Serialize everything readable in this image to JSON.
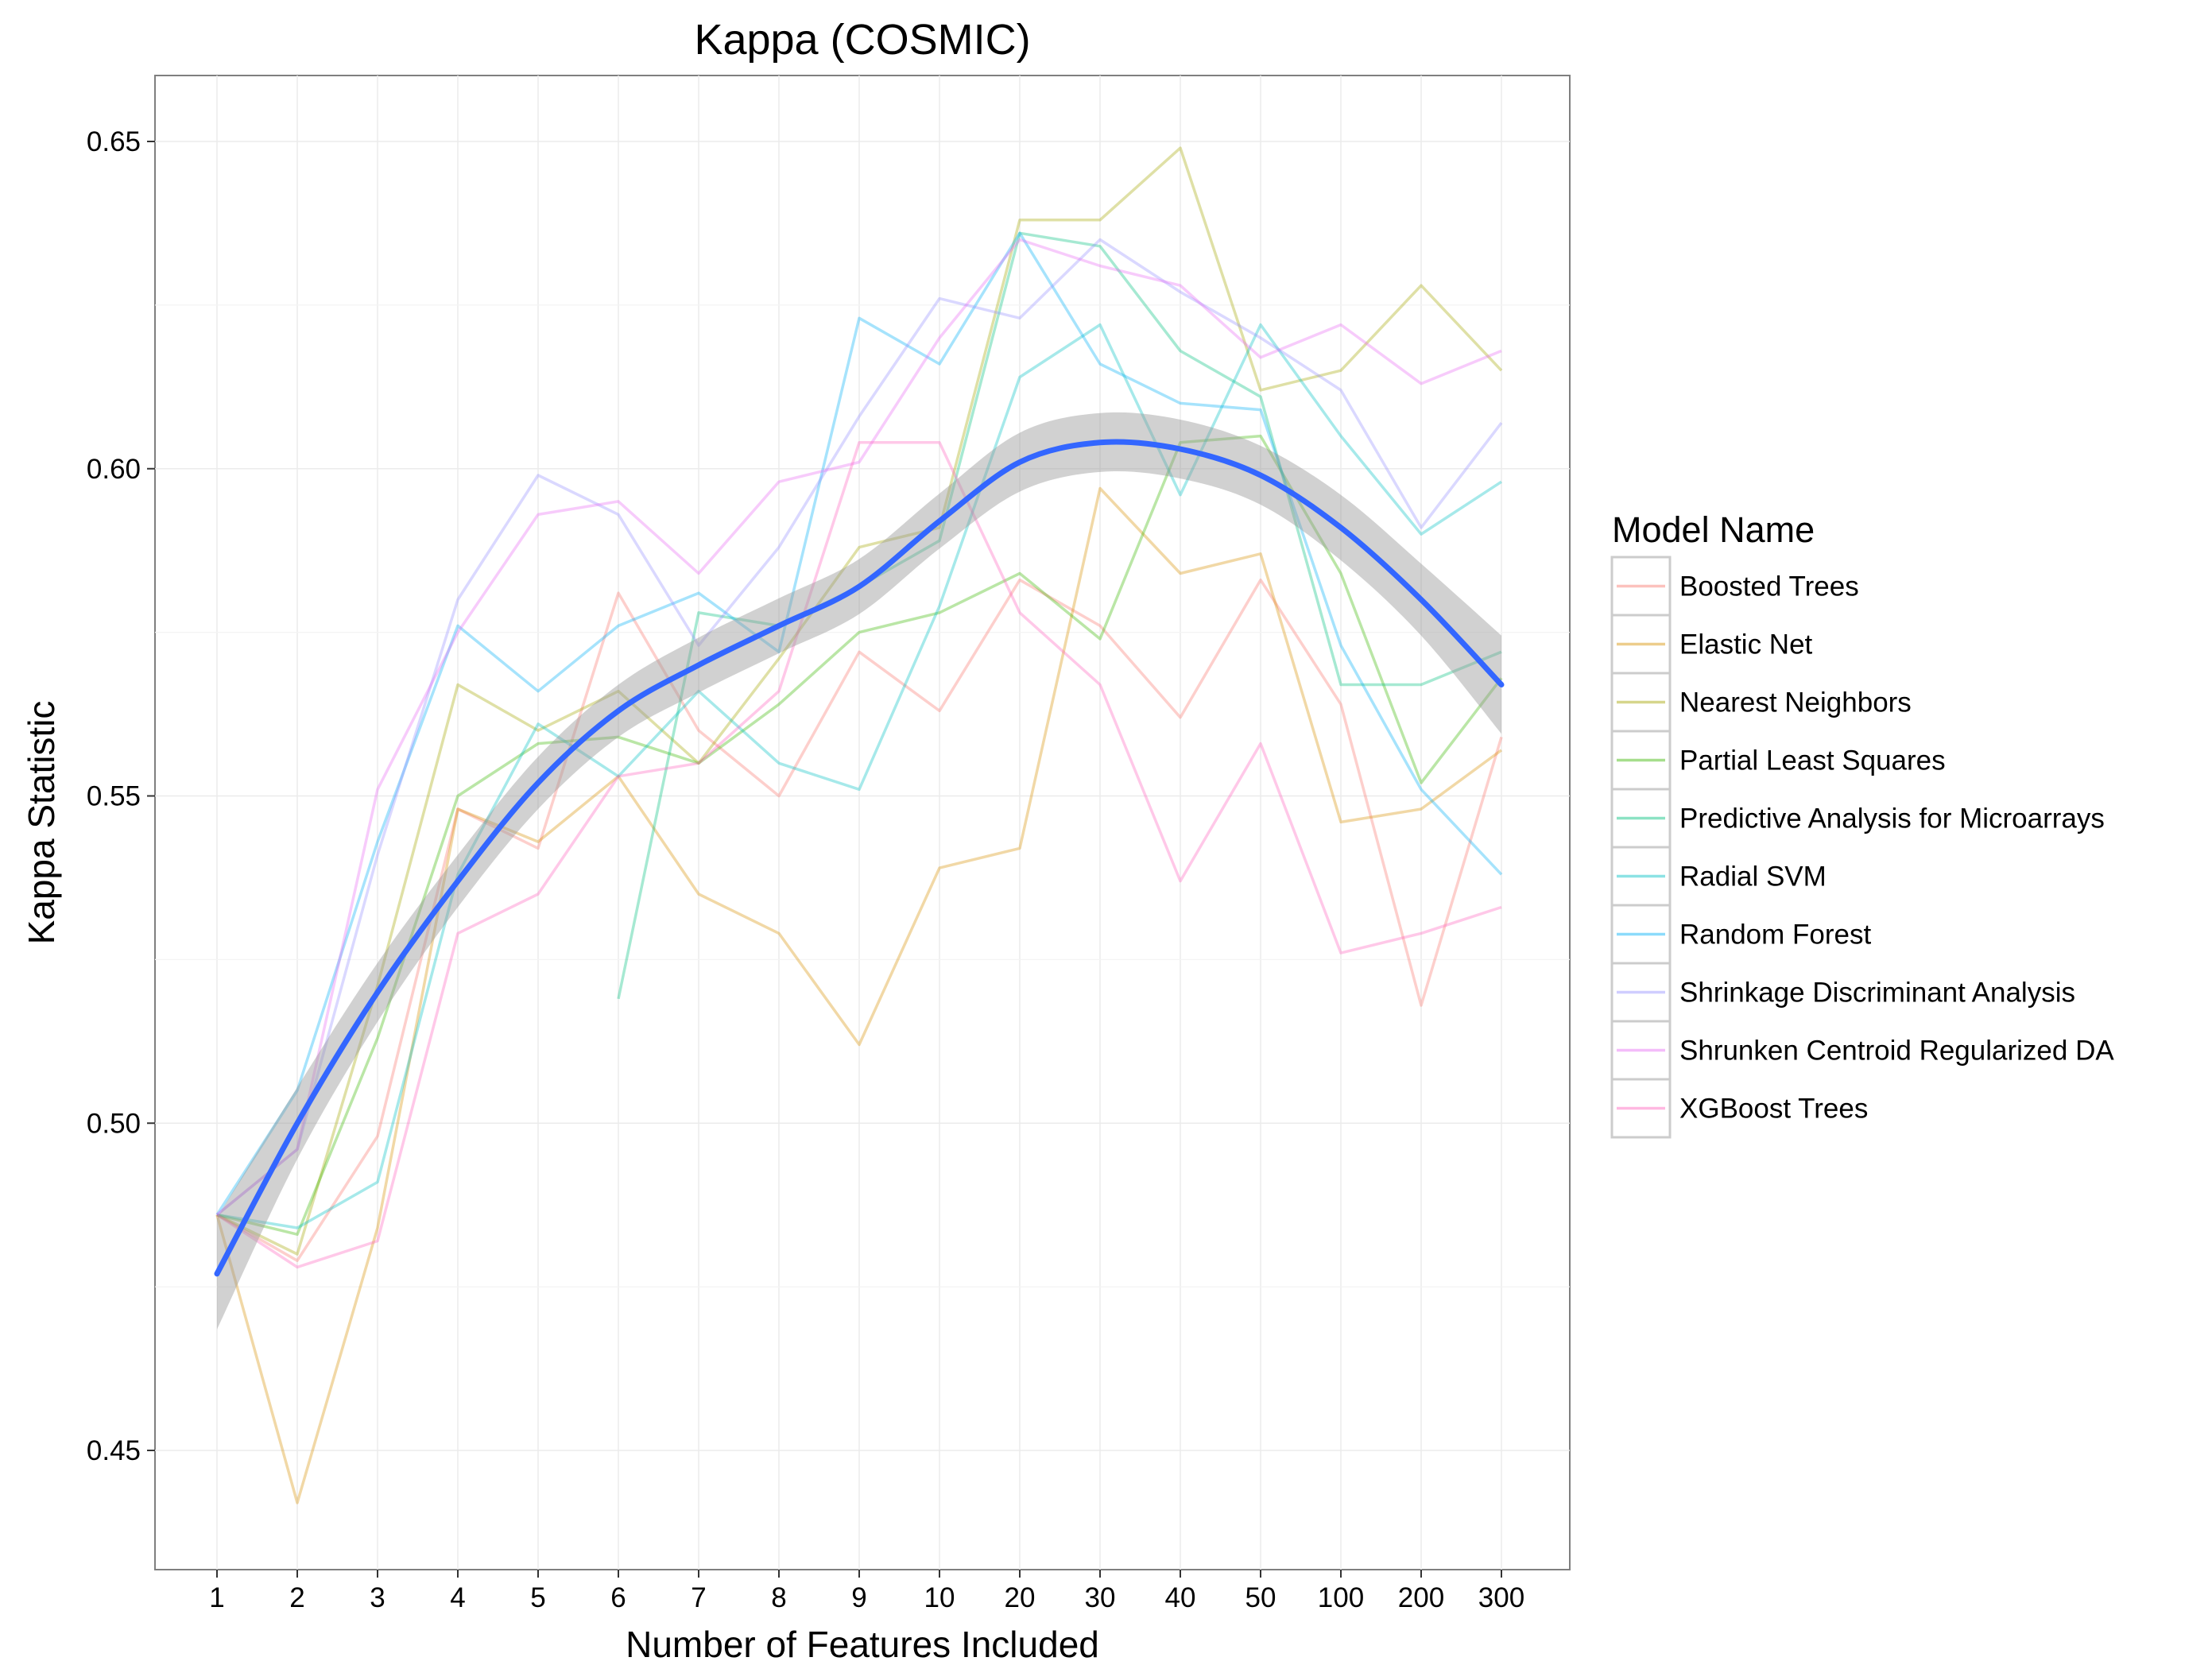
{
  "chart_data": {
    "type": "line",
    "title": "Kappa (COSMIC)",
    "xlabel": "Number of Features Included",
    "ylabel": "Kappa Statistic",
    "x": [
      "1",
      "2",
      "3",
      "4",
      "5",
      "6",
      "7",
      "8",
      "9",
      "10",
      "20",
      "30",
      "40",
      "50",
      "100",
      "200",
      "300"
    ],
    "yticks": [
      0.45,
      0.5,
      0.55,
      0.6,
      0.65
    ],
    "ytick_labels": [
      "0.45",
      "0.50",
      "0.55",
      "0.60",
      "0.65"
    ],
    "ylim": [
      0.431,
      0.66
    ],
    "grid": true,
    "legend": {
      "title": "Model Name",
      "position": "right"
    },
    "series": [
      {
        "name": "Boosted Trees",
        "color": "#F8766D",
        "values": [
          0.486,
          0.479,
          0.498,
          0.548,
          0.542,
          0.581,
          0.56,
          0.55,
          0.572,
          0.563,
          0.583,
          0.576,
          0.562,
          0.583,
          0.564,
          0.518,
          0.559
        ]
      },
      {
        "name": "Elastic Net",
        "color": "#D89000",
        "values": [
          0.486,
          0.442,
          0.484,
          0.548,
          0.543,
          0.553,
          0.535,
          0.529,
          0.512,
          0.539,
          0.542,
          0.597,
          0.584,
          0.587,
          0.546,
          0.548,
          0.557
        ]
      },
      {
        "name": "Nearest Neighbors",
        "color": "#A3A500",
        "values": [
          0.486,
          0.48,
          0.521,
          0.567,
          0.56,
          0.566,
          0.555,
          0.571,
          0.588,
          0.591,
          0.638,
          0.638,
          0.649,
          0.612,
          0.615,
          0.628,
          0.615
        ]
      },
      {
        "name": "Partial Least Squares",
        "color": "#39B600",
        "values": [
          0.486,
          0.483,
          0.513,
          0.55,
          0.558,
          0.559,
          0.555,
          0.564,
          0.575,
          0.578,
          0.584,
          0.574,
          0.604,
          0.605,
          0.584,
          0.552,
          0.568
        ]
      },
      {
        "name": "Predictive Analysis for Microarrays",
        "color": "#00BF7D",
        "values": [
          null,
          null,
          null,
          null,
          null,
          0.519,
          0.578,
          0.576,
          0.582,
          0.589,
          0.636,
          0.634,
          0.618,
          0.611,
          0.567,
          0.567,
          0.572
        ]
      },
      {
        "name": "Radial SVM",
        "color": "#00BFC4",
        "values": [
          0.486,
          0.484,
          0.491,
          0.538,
          0.561,
          0.553,
          0.566,
          0.555,
          0.551,
          0.579,
          0.614,
          0.622,
          0.596,
          0.622,
          0.605,
          0.59,
          0.598
        ]
      },
      {
        "name": "Random Forest",
        "color": "#00B0F6",
        "values": [
          0.486,
          0.505,
          0.543,
          0.576,
          0.566,
          0.576,
          0.581,
          0.572,
          0.623,
          0.616,
          0.636,
          0.616,
          0.61,
          0.609,
          0.573,
          0.551,
          0.538
        ]
      },
      {
        "name": "Shrinkage Discriminant Analysis",
        "color": "#9590FF",
        "values": [
          0.486,
          0.496,
          0.541,
          0.58,
          0.599,
          0.593,
          0.573,
          0.588,
          0.608,
          0.626,
          0.623,
          0.635,
          0.627,
          0.62,
          0.612,
          0.591,
          0.607
        ]
      },
      {
        "name": "Shrunken Centroid Regularized DA",
        "color": "#E76BF3",
        "values": [
          0.486,
          0.496,
          0.551,
          0.575,
          0.593,
          0.595,
          0.584,
          0.598,
          0.601,
          0.62,
          0.635,
          0.631,
          0.628,
          0.617,
          0.622,
          0.613,
          0.618
        ]
      },
      {
        "name": "XGBoost Trees",
        "color": "#FF62BC",
        "values": [
          0.486,
          0.478,
          0.482,
          0.529,
          0.535,
          0.553,
          0.555,
          0.566,
          0.604,
          0.604,
          0.578,
          0.567,
          0.537,
          0.558,
          0.526,
          0.529,
          0.533
        ]
      }
    ],
    "smooth": {
      "color": "#3366FF",
      "band_color": "#999999",
      "values": [
        0.477,
        0.5,
        0.52,
        0.537,
        0.552,
        0.563,
        0.57,
        0.576,
        0.582,
        0.592,
        0.601,
        0.604,
        0.603,
        0.599,
        0.591,
        0.58,
        0.567
      ],
      "band_halfwidth": [
        0.0085,
        0.0055,
        0.0045,
        0.004,
        0.004,
        0.004,
        0.0042,
        0.0042,
        0.0042,
        0.0042,
        0.0045,
        0.0045,
        0.0045,
        0.0045,
        0.005,
        0.0055,
        0.0075
      ]
    }
  }
}
